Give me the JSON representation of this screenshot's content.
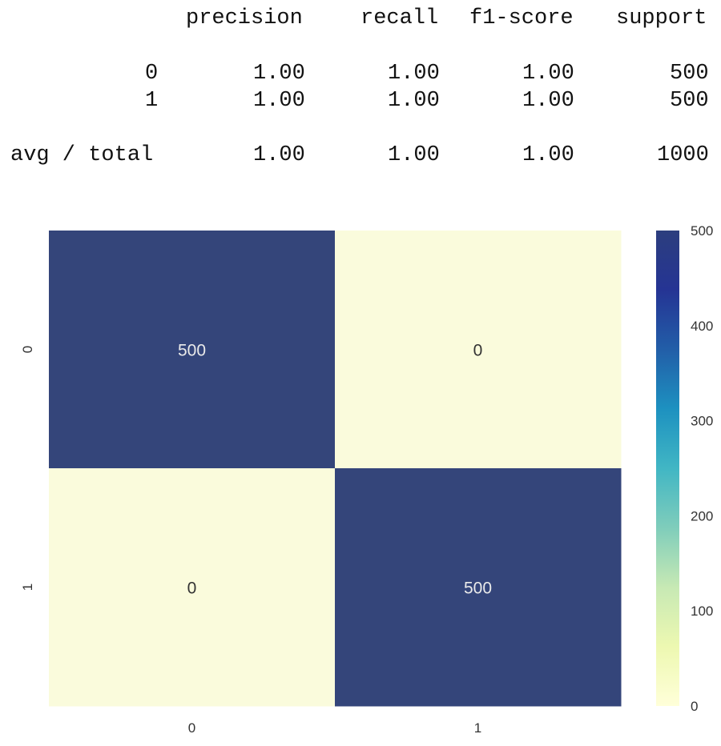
{
  "report": {
    "columns": [
      "precision",
      "recall",
      "f1-score",
      "support"
    ],
    "rows": [
      {
        "label": "0",
        "values": [
          "1.00",
          "1.00",
          "1.00",
          "500"
        ]
      },
      {
        "label": "1",
        "values": [
          "1.00",
          "1.00",
          "1.00",
          "500"
        ]
      }
    ],
    "total": {
      "label": "avg / total",
      "values": [
        "1.00",
        "1.00",
        "1.00",
        "1000"
      ]
    }
  },
  "chart_data": {
    "type": "heatmap",
    "x_categories": [
      "0",
      "1"
    ],
    "y_categories": [
      "0",
      "1"
    ],
    "values": [
      [
        500,
        0
      ],
      [
        0,
        500
      ]
    ],
    "annotations": [
      [
        "500",
        "0"
      ],
      [
        "0",
        "500"
      ]
    ],
    "colorbar": {
      "range": [
        0,
        500
      ],
      "ticks": [
        0,
        100,
        200,
        300,
        400,
        500
      ],
      "colormap": "YlGnBu",
      "colors": [
        "#ffffd9",
        "#edf8b1",
        "#c7e9b4",
        "#7fcdbb",
        "#41b6c4",
        "#1d91c0",
        "#225ea8",
        "#253494",
        "#2c3e7e"
      ]
    },
    "title": "",
    "xlabel": "",
    "ylabel": "",
    "grid": false,
    "legend": "colorbar-right",
    "high_color": "#34457a",
    "low_color": "#fafbdc",
    "annotation_light": "#eaeaea",
    "annotation_dark": "#333333"
  }
}
